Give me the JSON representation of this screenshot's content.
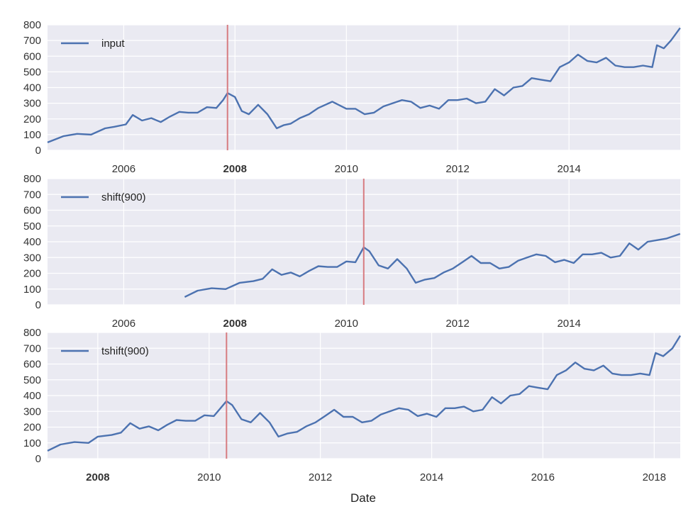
{
  "chart_data": [
    {
      "type": "line",
      "title": "",
      "xlabel": "",
      "ylabel": "",
      "xlim": [
        "2004-08-19",
        "2016-01-01"
      ],
      "ylim": [
        0,
        800
      ],
      "yticks": [
        0,
        100,
        200,
        300,
        400,
        500,
        600,
        700,
        800
      ],
      "xticks": [
        {
          "date": "2006-01-01",
          "label": "2006"
        },
        {
          "date": "2008-01-01",
          "label": "2008"
        },
        {
          "date": "2010-01-01",
          "label": "2010"
        },
        {
          "date": "2012-01-01",
          "label": "2012"
        },
        {
          "date": "2014-01-01",
          "label": "2014"
        }
      ],
      "highlight_tick": "2008",
      "vline": "2007-11-13",
      "grid": true,
      "legend_position": "top-left",
      "series": [
        {
          "name": "input",
          "x": [
            "2004-08-19",
            "2004-12-01",
            "2005-03-01",
            "2005-06-01",
            "2005-09-01",
            "2005-11-01",
            "2006-01-15",
            "2006-03-01",
            "2006-05-01",
            "2006-07-01",
            "2006-09-01",
            "2006-11-01",
            "2007-01-01",
            "2007-03-01",
            "2007-05-01",
            "2007-07-01",
            "2007-09-01",
            "2007-10-15",
            "2007-11-13",
            "2008-01-01",
            "2008-02-15",
            "2008-04-01",
            "2008-06-01",
            "2008-08-01",
            "2008-10-01",
            "2008-11-15",
            "2009-01-01",
            "2009-03-01",
            "2009-05-01",
            "2009-07-01",
            "2009-10-01",
            "2010-01-01",
            "2010-03-01",
            "2010-05-01",
            "2010-07-01",
            "2010-09-01",
            "2010-11-01",
            "2011-01-01",
            "2011-03-01",
            "2011-05-01",
            "2011-07-01",
            "2011-09-01",
            "2011-11-01",
            "2012-01-01",
            "2012-03-01",
            "2012-05-01",
            "2012-07-01",
            "2012-09-01",
            "2012-11-01",
            "2013-01-01",
            "2013-03-01",
            "2013-05-01",
            "2013-07-01",
            "2013-09-01",
            "2013-11-01",
            "2014-01-01",
            "2014-03-01",
            "2014-05-01",
            "2014-07-01",
            "2014-09-01",
            "2014-11-01",
            "2015-01-01",
            "2015-03-01",
            "2015-05-01",
            "2015-07-01",
            "2015-08-01",
            "2015-09-15",
            "2015-11-01",
            "2015-12-31"
          ],
          "values": [
            50,
            90,
            105,
            100,
            140,
            150,
            165,
            225,
            190,
            205,
            180,
            215,
            245,
            240,
            240,
            275,
            270,
            320,
            365,
            340,
            250,
            230,
            290,
            230,
            140,
            160,
            170,
            205,
            230,
            270,
            310,
            265,
            265,
            230,
            240,
            280,
            300,
            320,
            310,
            270,
            285,
            265,
            320,
            320,
            330,
            300,
            310,
            390,
            350,
            400,
            410,
            460,
            450,
            440,
            530,
            560,
            610,
            570,
            560,
            590,
            540,
            530,
            530,
            540,
            530,
            670,
            650,
            700,
            780
          ]
        }
      ]
    },
    {
      "type": "line",
      "title": "",
      "xlabel": "",
      "ylabel": "",
      "xlim": [
        "2004-08-19",
        "2016-01-01"
      ],
      "ylim": [
        0,
        800
      ],
      "yticks": [
        0,
        100,
        200,
        300,
        400,
        500,
        600,
        700,
        800
      ],
      "xticks": [
        {
          "date": "2006-01-01",
          "label": "2006"
        },
        {
          "date": "2008-01-01",
          "label": "2008"
        },
        {
          "date": "2010-01-01",
          "label": "2010"
        },
        {
          "date": "2012-01-01",
          "label": "2012"
        },
        {
          "date": "2014-01-01",
          "label": "2014"
        }
      ],
      "highlight_tick": "2008",
      "vline": "2010-04-25",
      "grid": true,
      "legend_position": "top-left",
      "series": [
        {
          "name": "shift(900)",
          "x": [
            "2007-02-05",
            "2007-05-01",
            "2007-08-01",
            "2007-11-01",
            "2008-02-01",
            "2008-05-01",
            "2008-07-01",
            "2008-09-01",
            "2008-11-01",
            "2009-01-01",
            "2009-03-01",
            "2009-05-01",
            "2009-07-01",
            "2009-09-01",
            "2009-11-01",
            "2010-01-01",
            "2010-03-01",
            "2010-04-25",
            "2010-06-01",
            "2010-08-01",
            "2010-10-01",
            "2010-12-01",
            "2011-02-01",
            "2011-04-01",
            "2011-06-01",
            "2011-08-01",
            "2011-10-01",
            "2011-12-01",
            "2012-02-01",
            "2012-04-01",
            "2012-06-01",
            "2012-08-01",
            "2012-10-01",
            "2012-12-01",
            "2013-02-01",
            "2013-04-01",
            "2013-06-01",
            "2013-08-01",
            "2013-10-01",
            "2013-12-01",
            "2014-02-01",
            "2014-04-01",
            "2014-06-01",
            "2014-08-01",
            "2014-10-01",
            "2014-12-01",
            "2015-02-01",
            "2015-04-01",
            "2015-06-01",
            "2015-08-01",
            "2015-10-01",
            "2015-12-31"
          ],
          "values": [
            50,
            90,
            105,
            100,
            140,
            150,
            165,
            225,
            190,
            205,
            180,
            215,
            245,
            240,
            240,
            275,
            270,
            365,
            340,
            250,
            230,
            290,
            230,
            140,
            160,
            170,
            205,
            230,
            270,
            310,
            265,
            265,
            230,
            240,
            280,
            300,
            320,
            310,
            270,
            285,
            265,
            320,
            320,
            330,
            300,
            310,
            390,
            350,
            400,
            410,
            420,
            450
          ]
        }
      ]
    },
    {
      "type": "line",
      "title": "",
      "xlabel": "Date",
      "ylabel": "",
      "xlim": [
        "2007-02-05",
        "2018-06-21"
      ],
      "ylim": [
        0,
        800
      ],
      "yticks": [
        0,
        100,
        200,
        300,
        400,
        500,
        600,
        700,
        800
      ],
      "xticks": [
        {
          "date": "2008-01-01",
          "label": "2008"
        },
        {
          "date": "2010-01-01",
          "label": "2010"
        },
        {
          "date": "2012-01-01",
          "label": "2012"
        },
        {
          "date": "2014-01-01",
          "label": "2014"
        },
        {
          "date": "2016-01-01",
          "label": "2016"
        },
        {
          "date": "2018-01-01",
          "label": "2018"
        }
      ],
      "highlight_tick": "2008",
      "vline": "2010-04-25",
      "grid": true,
      "legend_position": "top-left",
      "series": [
        {
          "name": "tshift(900)",
          "x": [
            "2007-02-05",
            "2007-05-01",
            "2007-08-01",
            "2007-11-01",
            "2008-01-01",
            "2008-04-01",
            "2008-06-01",
            "2008-08-01",
            "2008-10-01",
            "2008-12-01",
            "2009-02-01",
            "2009-04-01",
            "2009-06-01",
            "2009-08-01",
            "2009-10-01",
            "2009-12-01",
            "2010-02-01",
            "2010-04-25",
            "2010-06-01",
            "2010-08-01",
            "2010-10-01",
            "2010-12-01",
            "2011-02-01",
            "2011-04-01",
            "2011-06-01",
            "2011-08-01",
            "2011-10-01",
            "2011-12-01",
            "2012-02-01",
            "2012-04-01",
            "2012-06-01",
            "2012-08-01",
            "2012-10-01",
            "2012-12-01",
            "2013-02-01",
            "2013-04-01",
            "2013-06-01",
            "2013-08-01",
            "2013-10-01",
            "2013-12-01",
            "2014-02-01",
            "2014-04-01",
            "2014-06-01",
            "2014-08-01",
            "2014-10-01",
            "2014-12-01",
            "2015-02-01",
            "2015-04-01",
            "2015-06-01",
            "2015-08-01",
            "2015-10-01",
            "2015-12-01",
            "2016-02-01",
            "2016-04-01",
            "2016-06-01",
            "2016-08-01",
            "2016-10-01",
            "2016-12-01",
            "2017-02-01",
            "2017-04-01",
            "2017-06-01",
            "2017-08-01",
            "2017-10-01",
            "2017-12-01",
            "2018-01-10",
            "2018-03-01",
            "2018-05-01",
            "2018-06-21"
          ],
          "values": [
            50,
            90,
            105,
            100,
            140,
            150,
            165,
            225,
            190,
            205,
            180,
            215,
            245,
            240,
            240,
            275,
            270,
            365,
            340,
            250,
            230,
            290,
            230,
            140,
            160,
            170,
            205,
            230,
            270,
            310,
            265,
            265,
            230,
            240,
            280,
            300,
            320,
            310,
            270,
            285,
            265,
            320,
            320,
            330,
            300,
            310,
            390,
            350,
            400,
            410,
            460,
            450,
            440,
            530,
            560,
            610,
            570,
            560,
            590,
            540,
            530,
            530,
            540,
            530,
            670,
            650,
            700,
            780
          ]
        }
      ]
    }
  ],
  "colors": {
    "series": "#4c72b0",
    "highlight_line": "#d77b80",
    "highlight_tick": "#e03030",
    "plot_background": "#eaeaf2",
    "grid": "#ffffff"
  }
}
